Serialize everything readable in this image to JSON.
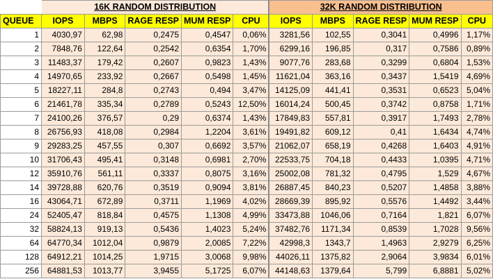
{
  "groups": {
    "left_title": "16K RANDOM DISTRIBUTION",
    "right_title": "32K RANDOM DISTRIBUTION"
  },
  "headers": {
    "queue": "QUEUE",
    "left": [
      "IOPS",
      "MBPS",
      "RAGE RESP",
      "MUM RESP",
      "CPU"
    ],
    "right": [
      "IOPS",
      "MBPS",
      "RAGE RESP",
      "MUM RESP",
      "CPU"
    ]
  },
  "rows": [
    {
      "queue": "1",
      "left": [
        "4030,97",
        "62,98",
        "0,2475",
        "0,4547",
        "0,06%"
      ],
      "right": [
        "3281,56",
        "102,55",
        "0,3041",
        "0,4996",
        "1,17%"
      ]
    },
    {
      "queue": "2",
      "left": [
        "7848,76",
        "122,64",
        "0,2542",
        "0,6354",
        "1,70%"
      ],
      "right": [
        "6299,16",
        "196,85",
        "0,317",
        "0,7586",
        "0,89%"
      ]
    },
    {
      "queue": "3",
      "left": [
        "11483,37",
        "179,42",
        "0,2607",
        "0,9823",
        "1,43%"
      ],
      "right": [
        "9077,76",
        "283,68",
        "0,3299",
        "0,6804",
        "1,53%"
      ]
    },
    {
      "queue": "4",
      "left": [
        "14970,65",
        "233,92",
        "0,2667",
        "0,5498",
        "1,45%"
      ],
      "right": [
        "11621,04",
        "363,16",
        "0,3437",
        "1,5419",
        "4,69%"
      ]
    },
    {
      "queue": "5",
      "left": [
        "18227,11",
        "284,8",
        "0,2743",
        "0,494",
        "3,47%"
      ],
      "right": [
        "14125,09",
        "441,41",
        "0,3531",
        "0,6523",
        "5,04%"
      ]
    },
    {
      "queue": "6",
      "left": [
        "21461,78",
        "335,34",
        "0,2789",
        "0,5243",
        "12,50%"
      ],
      "right": [
        "16014,24",
        "500,45",
        "0,3742",
        "0,8758",
        "1,71%"
      ]
    },
    {
      "queue": "7",
      "left": [
        "24100,26",
        "376,57",
        "0,29",
        "0,6374",
        "1,43%"
      ],
      "right": [
        "17849,83",
        "557,81",
        "0,3917",
        "1,7493",
        "2,78%"
      ]
    },
    {
      "queue": "8",
      "left": [
        "26756,93",
        "418,08",
        "0,2984",
        "1,2204",
        "3,61%"
      ],
      "right": [
        "19491,82",
        "609,12",
        "0,41",
        "1,6434",
        "4,74%"
      ]
    },
    {
      "queue": "9",
      "left": [
        "29283,25",
        "457,55",
        "0,307",
        "0,6692",
        "3,57%"
      ],
      "right": [
        "21062,07",
        "658,19",
        "0,4268",
        "1,6403",
        "4,91%"
      ]
    },
    {
      "queue": "10",
      "left": [
        "31706,43",
        "495,41",
        "0,3148",
        "0,6981",
        "2,70%"
      ],
      "right": [
        "22533,75",
        "704,18",
        "0,4433",
        "1,0395",
        "4,71%"
      ]
    },
    {
      "queue": "12",
      "left": [
        "35910,76",
        "561,11",
        "0,3337",
        "0,8075",
        "3,16%"
      ],
      "right": [
        "25002,08",
        "781,32",
        "0,4795",
        "1,529",
        "4,67%"
      ]
    },
    {
      "queue": "14",
      "left": [
        "39728,88",
        "620,76",
        "0,3519",
        "0,9094",
        "3,81%"
      ],
      "right": [
        "26887,45",
        "840,23",
        "0,5207",
        "1,4858",
        "3,88%"
      ]
    },
    {
      "queue": "16",
      "left": [
        "43064,71",
        "672,89",
        "0,3711",
        "1,1969",
        "4,02%"
      ],
      "right": [
        "28669,39",
        "895,92",
        "0,5576",
        "1,4492",
        "3,44%"
      ]
    },
    {
      "queue": "24",
      "left": [
        "52405,47",
        "818,84",
        "0,4575",
        "1,1308",
        "4,99%"
      ],
      "right": [
        "33473,88",
        "1046,06",
        "0,7164",
        "1,821",
        "6,07%"
      ]
    },
    {
      "queue": "32",
      "left": [
        "58824,13",
        "919,13",
        "0,5436",
        "1,4023",
        "5,24%"
      ],
      "right": [
        "37482,76",
        "1171,34",
        "0,8539",
        "1,7028",
        "9,56%"
      ]
    },
    {
      "queue": "64",
      "left": [
        "64770,34",
        "1012,04",
        "0,9879",
        "2,0085",
        "7,22%"
      ],
      "right": [
        "42998,3",
        "1343,7",
        "1,4963",
        "2,9279",
        "6,25%"
      ]
    },
    {
      "queue": "128",
      "left": [
        "64912,21",
        "1014,25",
        "1,9715",
        "3,0068",
        "9,98%"
      ],
      "right": [
        "44026,11",
        "1375,82",
        "2,9064",
        "3,9834",
        "6,01%"
      ]
    },
    {
      "queue": "256",
      "left": [
        "64881,53",
        "1013,77",
        "3,9455",
        "5,1725",
        "6,07%"
      ],
      "right": [
        "44148,63",
        "1379,64",
        "5,799",
        "6,8881",
        "5,02%"
      ]
    }
  ],
  "colors": {
    "header_fill": "#ffff00",
    "left_fill": "#fde9d9",
    "right_title_fill": "#fabf8f"
  }
}
